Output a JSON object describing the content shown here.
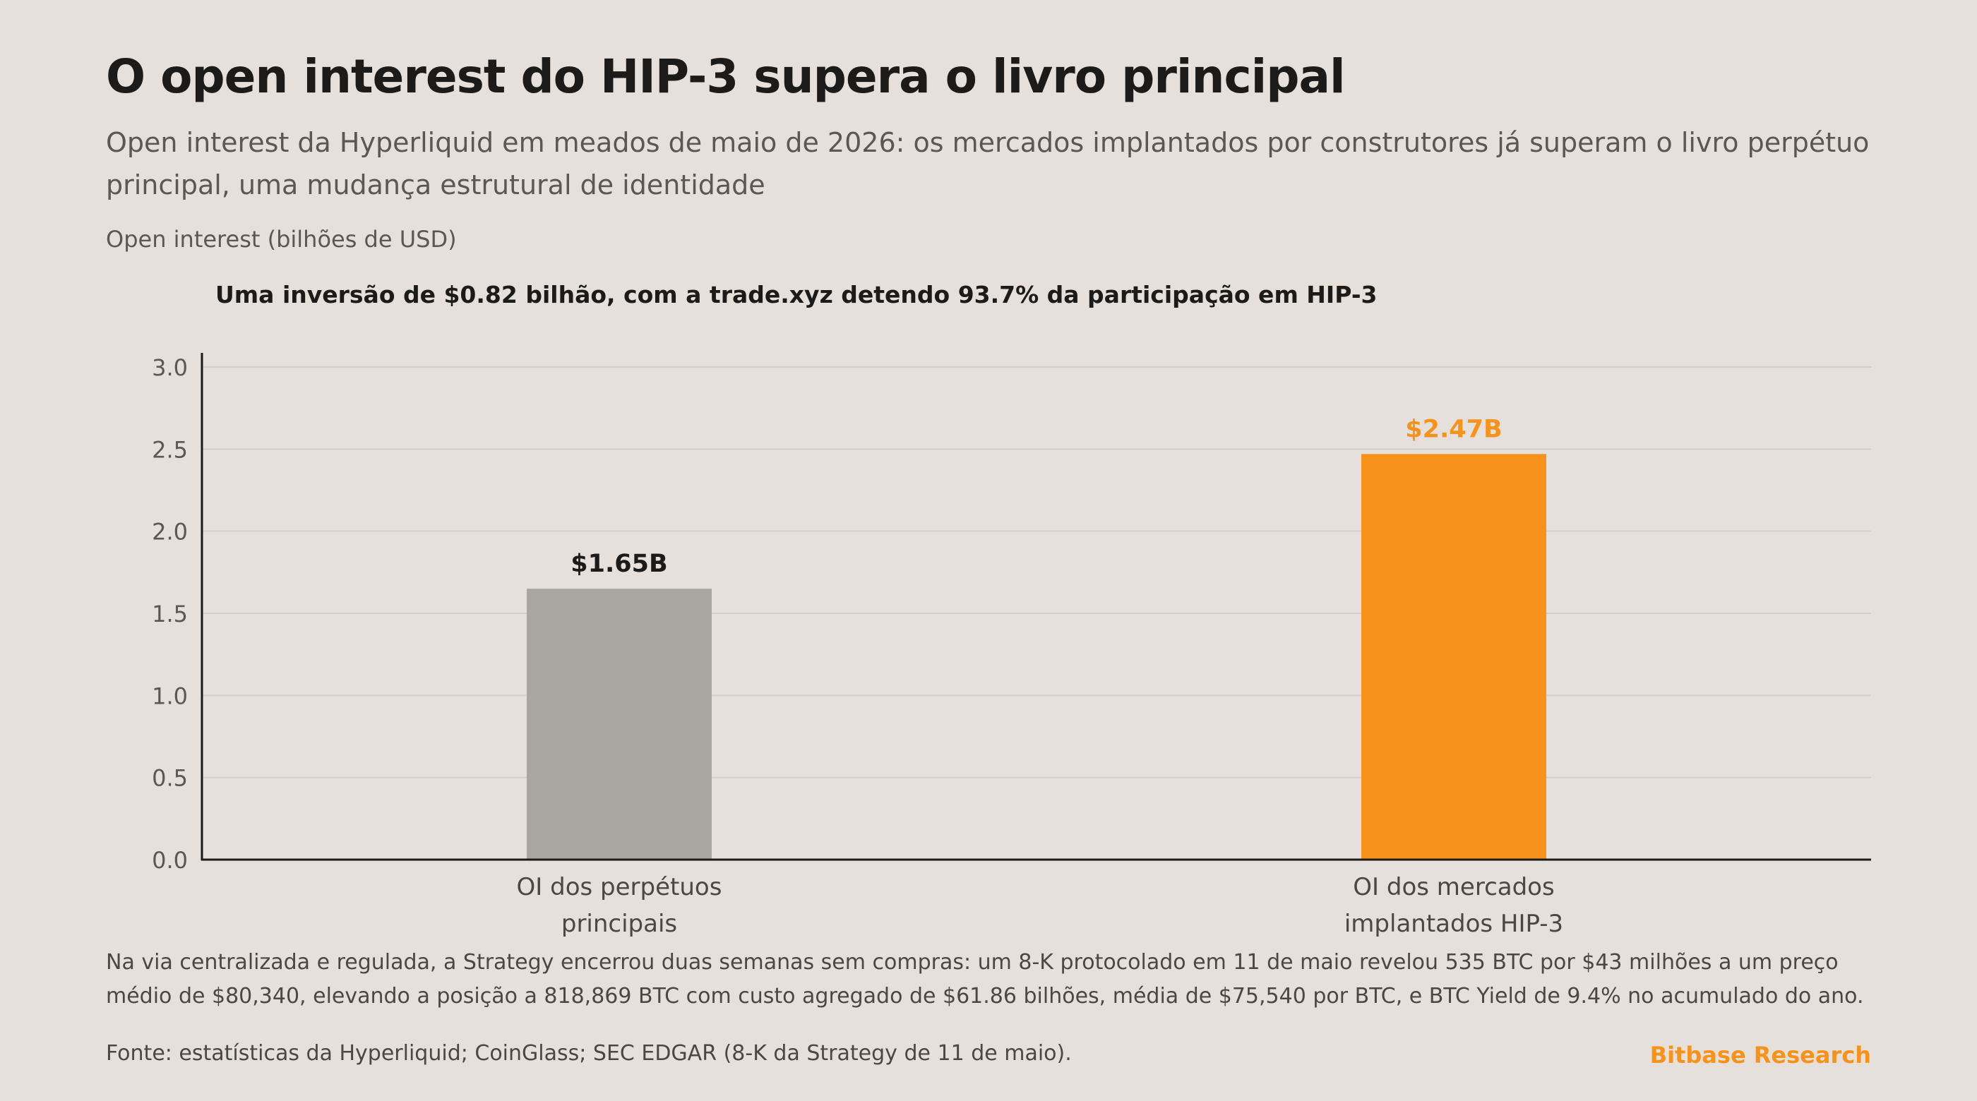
{
  "header": {
    "title": "O open interest do HIP-3 supera o livro principal",
    "subtitle": "Open interest da Hyperliquid em meados de maio de 2026: os mercados implantados por construtores já superam o livro perpétuo principal, uma mudança estrutural de identidade"
  },
  "chart_data": {
    "type": "bar",
    "ylabel": "Open interest (bilhões de USD)",
    "annotation": "Uma inversão de $0.82 bilhão, com a trade.xyz detendo 93.7% da participação em HIP-3",
    "categories": [
      "OI dos perpétuos principais",
      "OI dos mercados implantados HIP-3"
    ],
    "category_lines": [
      [
        "OI dos perpétuos",
        "principais"
      ],
      [
        "OI dos mercados",
        "implantados HIP-3"
      ]
    ],
    "values": [
      1.65,
      2.47
    ],
    "data_labels": [
      "$1.65B",
      "$2.47B"
    ],
    "bar_colors": [
      "#aaa6a0",
      "#f7931a"
    ],
    "label_colors": [
      "#1c1b1a",
      "#f7931a"
    ],
    "ylim": [
      0,
      3.0
    ],
    "yticks": [
      "0.0",
      "0.5",
      "1.0",
      "1.5",
      "2.0",
      "2.5",
      "3.0"
    ],
    "grid": true
  },
  "footer": {
    "note": "Na via centralizada e regulada, a Strategy encerrou duas semanas sem compras: um 8-K protocolado em 11 de maio revelou 535 BTC por $43 milhões a um preço médio de $80,340, elevando a posição a 818,869 BTC com custo agregado de $61.86 bilhões, média de $75,540 por BTC, e BTC Yield de 9.4% no acumulado do ano.",
    "source": "Fonte: estatísticas da Hyperliquid; CoinGlass; SEC EDGAR (8-K da Strategy de 11 de maio).",
    "brand": "Bitbase Research"
  },
  "colors": {
    "background": "#e5e0db",
    "accent": "#f7931a",
    "neutral_bar": "#aaa6a0",
    "text": "#1c1b1a",
    "muted_text": "#5b5753",
    "grid": "#d3cec8"
  }
}
